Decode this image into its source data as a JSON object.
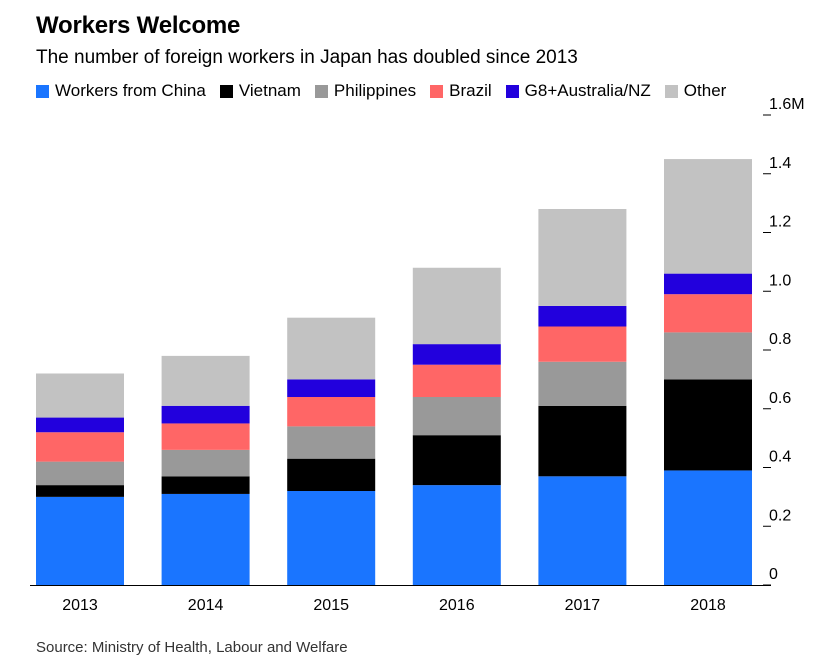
{
  "title": "Workers Welcome",
  "subtitle": "The number of foreign workers in Japan has doubled since 2013",
  "source": "Source: Ministry of Health, Labour and Welfare",
  "chart_data": {
    "type": "bar",
    "stacked": true,
    "categories": [
      "2013",
      "2014",
      "2015",
      "2016",
      "2017",
      "2018"
    ],
    "series": [
      {
        "name": "Workers from China",
        "color": "#1a75ff",
        "values": [
          0.3,
          0.31,
          0.32,
          0.34,
          0.37,
          0.39
        ]
      },
      {
        "name": "Vietnam",
        "color": "#000000",
        "values": [
          0.04,
          0.06,
          0.11,
          0.17,
          0.24,
          0.31
        ]
      },
      {
        "name": "Philippines",
        "color": "#999999",
        "values": [
          0.08,
          0.09,
          0.11,
          0.13,
          0.15,
          0.16
        ]
      },
      {
        "name": "Brazil",
        "color": "#ff6666",
        "values": [
          0.1,
          0.09,
          0.1,
          0.11,
          0.12,
          0.13
        ]
      },
      {
        "name": "G8+Australia/NZ",
        "color": "#2200dd",
        "values": [
          0.05,
          0.06,
          0.06,
          0.07,
          0.07,
          0.07
        ]
      },
      {
        "name": "Other",
        "color": "#c2c2c2",
        "values": [
          0.15,
          0.17,
          0.21,
          0.26,
          0.33,
          0.39
        ]
      }
    ],
    "yticks": [
      "0",
      "0.2",
      "0.4",
      "0.6",
      "0.8",
      "1.0",
      "1.2",
      "1.4",
      "1.6M"
    ],
    "ylim": [
      0,
      1.6
    ],
    "y_axis_side": "right",
    "legend_position": "top"
  }
}
